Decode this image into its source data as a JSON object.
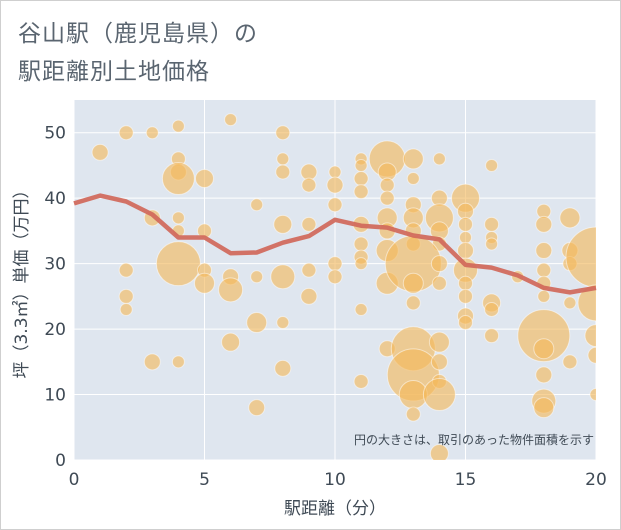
{
  "header": {
    "title_line1": "谷山駅（鹿児島県）の",
    "title_line2": "駅距離別土地価格"
  },
  "colors": {
    "plot_bg": "#dfe6ef",
    "grid": "#ffffff",
    "bubble": "#f4b85a",
    "line": "#d0685a"
  },
  "chart_data": {
    "type": "scatter",
    "xlabel": "駅距離（分）",
    "ylabel": "坪（3.3㎡）単価（万円）",
    "xlim": [
      0,
      20
    ],
    "ylim": [
      0,
      55
    ],
    "xticks": [
      0,
      5,
      10,
      15,
      20
    ],
    "yticks": [
      0,
      10,
      20,
      30,
      40,
      50
    ],
    "note": "円の大きさは、取引のあった物件面積を示す",
    "trend_line": {
      "x": [
        0,
        1,
        2,
        3,
        4,
        5,
        6,
        7,
        8,
        9,
        10,
        11,
        12,
        13,
        14,
        15,
        16,
        17,
        18,
        19,
        20
      ],
      "y": [
        39.2,
        40.4,
        39.5,
        37.5,
        34,
        34,
        31.6,
        31.7,
        33.2,
        34.2,
        36.7,
        35.8,
        35.5,
        34.3,
        33.7,
        29.8,
        29.4,
        28.2,
        26.3,
        25.6,
        26.3
      ]
    },
    "points": [
      {
        "x": 1,
        "y": 47,
        "s": 8
      },
      {
        "x": 2,
        "y": 50,
        "s": 7
      },
      {
        "x": 3,
        "y": 50,
        "s": 6
      },
      {
        "x": 4,
        "y": 51,
        "s": 6
      },
      {
        "x": 4,
        "y": 46,
        "s": 7
      },
      {
        "x": 4,
        "y": 44,
        "s": 8
      },
      {
        "x": 4,
        "y": 43,
        "s": 16
      },
      {
        "x": 5,
        "y": 43,
        "s": 9
      },
      {
        "x": 6,
        "y": 52,
        "s": 6
      },
      {
        "x": 8,
        "y": 50,
        "s": 7
      },
      {
        "x": 8,
        "y": 46,
        "s": 6
      },
      {
        "x": 8,
        "y": 44,
        "s": 7
      },
      {
        "x": 9,
        "y": 44,
        "s": 8
      },
      {
        "x": 9,
        "y": 42,
        "s": 7
      },
      {
        "x": 10,
        "y": 44,
        "s": 6
      },
      {
        "x": 10,
        "y": 42,
        "s": 8
      },
      {
        "x": 11,
        "y": 46,
        "s": 6
      },
      {
        "x": 11,
        "y": 45,
        "s": 6
      },
      {
        "x": 11,
        "y": 43,
        "s": 7
      },
      {
        "x": 11,
        "y": 41,
        "s": 7
      },
      {
        "x": 12,
        "y": 46,
        "s": 18
      },
      {
        "x": 12,
        "y": 44,
        "s": 9
      },
      {
        "x": 12,
        "y": 42,
        "s": 7
      },
      {
        "x": 12,
        "y": 40,
        "s": 7
      },
      {
        "x": 13,
        "y": 46,
        "s": 10
      },
      {
        "x": 13,
        "y": 43,
        "s": 6
      },
      {
        "x": 14,
        "y": 46,
        "s": 6
      },
      {
        "x": 14,
        "y": 40,
        "s": 8
      },
      {
        "x": 15,
        "y": 40,
        "s": 14
      },
      {
        "x": 16,
        "y": 45,
        "s": 6
      },
      {
        "x": 18,
        "y": 38,
        "s": 7
      },
      {
        "x": 18,
        "y": 36,
        "s": 8
      },
      {
        "x": 19,
        "y": 37,
        "s": 10
      },
      {
        "x": 3,
        "y": 37,
        "s": 8
      },
      {
        "x": 4,
        "y": 37,
        "s": 6
      },
      {
        "x": 4,
        "y": 35,
        "s": 6
      },
      {
        "x": 5,
        "y": 35,
        "s": 7
      },
      {
        "x": 7,
        "y": 39,
        "s": 6
      },
      {
        "x": 8,
        "y": 36,
        "s": 9
      },
      {
        "x": 9,
        "y": 36,
        "s": 7
      },
      {
        "x": 10,
        "y": 39,
        "s": 7
      },
      {
        "x": 11,
        "y": 36,
        "s": 8
      },
      {
        "x": 11,
        "y": 33,
        "s": 7
      },
      {
        "x": 11,
        "y": 31,
        "s": 7
      },
      {
        "x": 11,
        "y": 30,
        "s": 6
      },
      {
        "x": 12,
        "y": 37,
        "s": 10
      },
      {
        "x": 12,
        "y": 35,
        "s": 8
      },
      {
        "x": 12,
        "y": 32,
        "s": 11
      },
      {
        "x": 13,
        "y": 39,
        "s": 8
      },
      {
        "x": 13,
        "y": 37,
        "s": 10
      },
      {
        "x": 13,
        "y": 35,
        "s": 8
      },
      {
        "x": 13,
        "y": 33,
        "s": 7
      },
      {
        "x": 14,
        "y": 37,
        "s": 14
      },
      {
        "x": 14,
        "y": 35,
        "s": 9
      },
      {
        "x": 14,
        "y": 33,
        "s": 7
      },
      {
        "x": 15,
        "y": 38,
        "s": 8
      },
      {
        "x": 15,
        "y": 36,
        "s": 7
      },
      {
        "x": 15,
        "y": 34,
        "s": 6
      },
      {
        "x": 15,
        "y": 32,
        "s": 8
      },
      {
        "x": 16,
        "y": 36,
        "s": 7
      },
      {
        "x": 16,
        "y": 34,
        "s": 6
      },
      {
        "x": 16,
        "y": 33,
        "s": 6
      },
      {
        "x": 18,
        "y": 32,
        "s": 8
      },
      {
        "x": 19,
        "y": 32,
        "s": 8
      },
      {
        "x": 19,
        "y": 30,
        "s": 7
      },
      {
        "x": 20,
        "y": 31,
        "s": 30
      },
      {
        "x": 4,
        "y": 30,
        "s": 22
      },
      {
        "x": 2,
        "y": 29,
        "s": 7
      },
      {
        "x": 5,
        "y": 29,
        "s": 7
      },
      {
        "x": 5,
        "y": 27,
        "s": 10
      },
      {
        "x": 6,
        "y": 28,
        "s": 8
      },
      {
        "x": 6,
        "y": 26,
        "s": 12
      },
      {
        "x": 7,
        "y": 28,
        "s": 6
      },
      {
        "x": 8,
        "y": 28,
        "s": 12
      },
      {
        "x": 9,
        "y": 29,
        "s": 7
      },
      {
        "x": 10,
        "y": 30,
        "s": 7
      },
      {
        "x": 10,
        "y": 28,
        "s": 7
      },
      {
        "x": 12,
        "y": 27,
        "s": 11
      },
      {
        "x": 13,
        "y": 30,
        "s": 28
      },
      {
        "x": 13,
        "y": 27,
        "s": 10
      },
      {
        "x": 14,
        "y": 30,
        "s": 8
      },
      {
        "x": 14,
        "y": 27,
        "s": 7
      },
      {
        "x": 15,
        "y": 29,
        "s": 12
      },
      {
        "x": 15,
        "y": 27,
        "s": 7
      },
      {
        "x": 15,
        "y": 25,
        "s": 7
      },
      {
        "x": 16,
        "y": 24,
        "s": 9
      },
      {
        "x": 16,
        "y": 23,
        "s": 7
      },
      {
        "x": 17,
        "y": 28,
        "s": 6
      },
      {
        "x": 18,
        "y": 29,
        "s": 7
      },
      {
        "x": 18,
        "y": 27,
        "s": 7
      },
      {
        "x": 18,
        "y": 25,
        "s": 6
      },
      {
        "x": 19,
        "y": 24,
        "s": 6
      },
      {
        "x": 20,
        "y": 24,
        "s": 18
      },
      {
        "x": 2,
        "y": 25,
        "s": 7
      },
      {
        "x": 2,
        "y": 23,
        "s": 6
      },
      {
        "x": 9,
        "y": 25,
        "s": 8
      },
      {
        "x": 11,
        "y": 23,
        "s": 6
      },
      {
        "x": 13,
        "y": 24,
        "s": 7
      },
      {
        "x": 15,
        "y": 22,
        "s": 8
      },
      {
        "x": 15,
        "y": 21,
        "s": 7
      },
      {
        "x": 16,
        "y": 19,
        "s": 7
      },
      {
        "x": 6,
        "y": 18,
        "s": 9
      },
      {
        "x": 7,
        "y": 21,
        "s": 10
      },
      {
        "x": 8,
        "y": 21,
        "s": 6
      },
      {
        "x": 12,
        "y": 17,
        "s": 8
      },
      {
        "x": 13,
        "y": 17,
        "s": 22
      },
      {
        "x": 13,
        "y": 13,
        "s": 26
      },
      {
        "x": 13,
        "y": 10,
        "s": 14
      },
      {
        "x": 14,
        "y": 18,
        "s": 10
      },
      {
        "x": 14,
        "y": 15,
        "s": 8
      },
      {
        "x": 14,
        "y": 12,
        "s": 7
      },
      {
        "x": 14,
        "y": 10,
        "s": 16
      },
      {
        "x": 18,
        "y": 19,
        "s": 26
      },
      {
        "x": 18,
        "y": 17,
        "s": 10
      },
      {
        "x": 18,
        "y": 13,
        "s": 8
      },
      {
        "x": 18,
        "y": 9,
        "s": 12
      },
      {
        "x": 18,
        "y": 8,
        "s": 10
      },
      {
        "x": 19,
        "y": 15,
        "s": 7
      },
      {
        "x": 20,
        "y": 19,
        "s": 11
      },
      {
        "x": 20,
        "y": 16,
        "s": 8
      },
      {
        "x": 20,
        "y": 10,
        "s": 6
      },
      {
        "x": 3,
        "y": 15,
        "s": 8
      },
      {
        "x": 4,
        "y": 15,
        "s": 6
      },
      {
        "x": 8,
        "y": 14,
        "s": 8
      },
      {
        "x": 7,
        "y": 8,
        "s": 8
      },
      {
        "x": 11,
        "y": 12,
        "s": 7
      },
      {
        "x": 13,
        "y": 7,
        "s": 7
      },
      {
        "x": 14,
        "y": 1,
        "s": 9
      }
    ]
  }
}
